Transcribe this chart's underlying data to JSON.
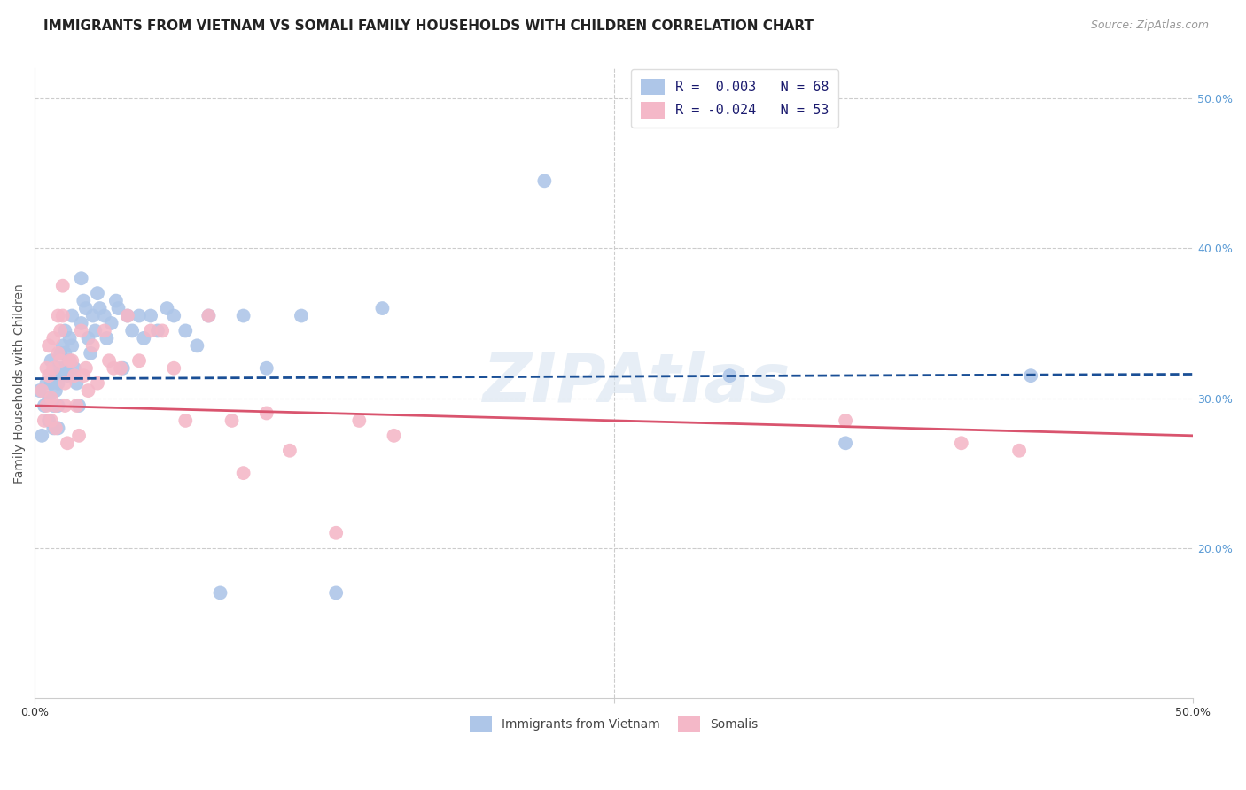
{
  "title": "IMMIGRANTS FROM VIETNAM VS SOMALI FAMILY HOUSEHOLDS WITH CHILDREN CORRELATION CHART",
  "source": "Source: ZipAtlas.com",
  "ylabel": "Family Households with Children",
  "xmin": 0.0,
  "xmax": 0.5,
  "ymin": 0.1,
  "ymax": 0.52,
  "legend1_label": "R =  0.003   N = 68",
  "legend2_label": "R = -0.024   N = 53",
  "legend1_color": "#aec6e8",
  "legend2_color": "#f4b8c8",
  "line1_color": "#1a4f96",
  "line2_color": "#d9546e",
  "watermark": "ZIPAtlas",
  "gridline_color": "#cccccc",
  "background_color": "#ffffff",
  "ytick_right_color": "#5b9bd5",
  "title_fontsize": 11,
  "source_fontsize": 9,
  "axis_label_fontsize": 10,
  "tick_fontsize": 9,
  "trendline1_start_y": 0.313,
  "trendline1_end_y": 0.316,
  "trendline2_start_y": 0.295,
  "trendline2_end_y": 0.275,
  "vietnam_x": [
    0.002,
    0.003,
    0.004,
    0.005,
    0.006,
    0.006,
    0.007,
    0.007,
    0.008,
    0.008,
    0.009,
    0.009,
    0.01,
    0.01,
    0.01,
    0.01,
    0.011,
    0.011,
    0.012,
    0.012,
    0.013,
    0.013,
    0.014,
    0.014,
    0.015,
    0.015,
    0.016,
    0.016,
    0.017,
    0.018,
    0.019,
    0.02,
    0.02,
    0.021,
    0.022,
    0.023,
    0.024,
    0.025,
    0.026,
    0.027,
    0.028,
    0.03,
    0.031,
    0.033,
    0.035,
    0.036,
    0.038,
    0.04,
    0.042,
    0.045,
    0.047,
    0.05,
    0.053,
    0.057,
    0.06,
    0.065,
    0.07,
    0.075,
    0.08,
    0.09,
    0.1,
    0.115,
    0.13,
    0.15,
    0.22,
    0.3,
    0.35,
    0.43
  ],
  "vietnam_y": [
    0.305,
    0.275,
    0.295,
    0.31,
    0.3,
    0.285,
    0.325,
    0.31,
    0.295,
    0.28,
    0.315,
    0.305,
    0.32,
    0.31,
    0.295,
    0.28,
    0.33,
    0.315,
    0.335,
    0.32,
    0.345,
    0.33,
    0.315,
    0.32,
    0.34,
    0.325,
    0.355,
    0.335,
    0.32,
    0.31,
    0.295,
    0.38,
    0.35,
    0.365,
    0.36,
    0.34,
    0.33,
    0.355,
    0.345,
    0.37,
    0.36,
    0.355,
    0.34,
    0.35,
    0.365,
    0.36,
    0.32,
    0.355,
    0.345,
    0.355,
    0.34,
    0.355,
    0.345,
    0.36,
    0.355,
    0.345,
    0.335,
    0.355,
    0.17,
    0.355,
    0.32,
    0.355,
    0.17,
    0.36,
    0.445,
    0.315,
    0.27,
    0.315
  ],
  "somali_x": [
    0.003,
    0.004,
    0.005,
    0.005,
    0.006,
    0.006,
    0.007,
    0.007,
    0.008,
    0.008,
    0.009,
    0.009,
    0.01,
    0.01,
    0.011,
    0.011,
    0.012,
    0.012,
    0.013,
    0.013,
    0.014,
    0.015,
    0.016,
    0.017,
    0.018,
    0.019,
    0.02,
    0.021,
    0.022,
    0.023,
    0.025,
    0.027,
    0.03,
    0.032,
    0.034,
    0.037,
    0.04,
    0.045,
    0.05,
    0.055,
    0.06,
    0.065,
    0.075,
    0.085,
    0.09,
    0.1,
    0.11,
    0.13,
    0.14,
    0.155,
    0.35,
    0.4,
    0.425
  ],
  "somali_y": [
    0.305,
    0.285,
    0.32,
    0.295,
    0.335,
    0.315,
    0.3,
    0.285,
    0.34,
    0.32,
    0.295,
    0.28,
    0.355,
    0.33,
    0.345,
    0.325,
    0.375,
    0.355,
    0.31,
    0.295,
    0.27,
    0.325,
    0.325,
    0.315,
    0.295,
    0.275,
    0.345,
    0.315,
    0.32,
    0.305,
    0.335,
    0.31,
    0.345,
    0.325,
    0.32,
    0.32,
    0.355,
    0.325,
    0.345,
    0.345,
    0.32,
    0.285,
    0.355,
    0.285,
    0.25,
    0.29,
    0.265,
    0.21,
    0.285,
    0.275,
    0.285,
    0.27,
    0.265
  ]
}
